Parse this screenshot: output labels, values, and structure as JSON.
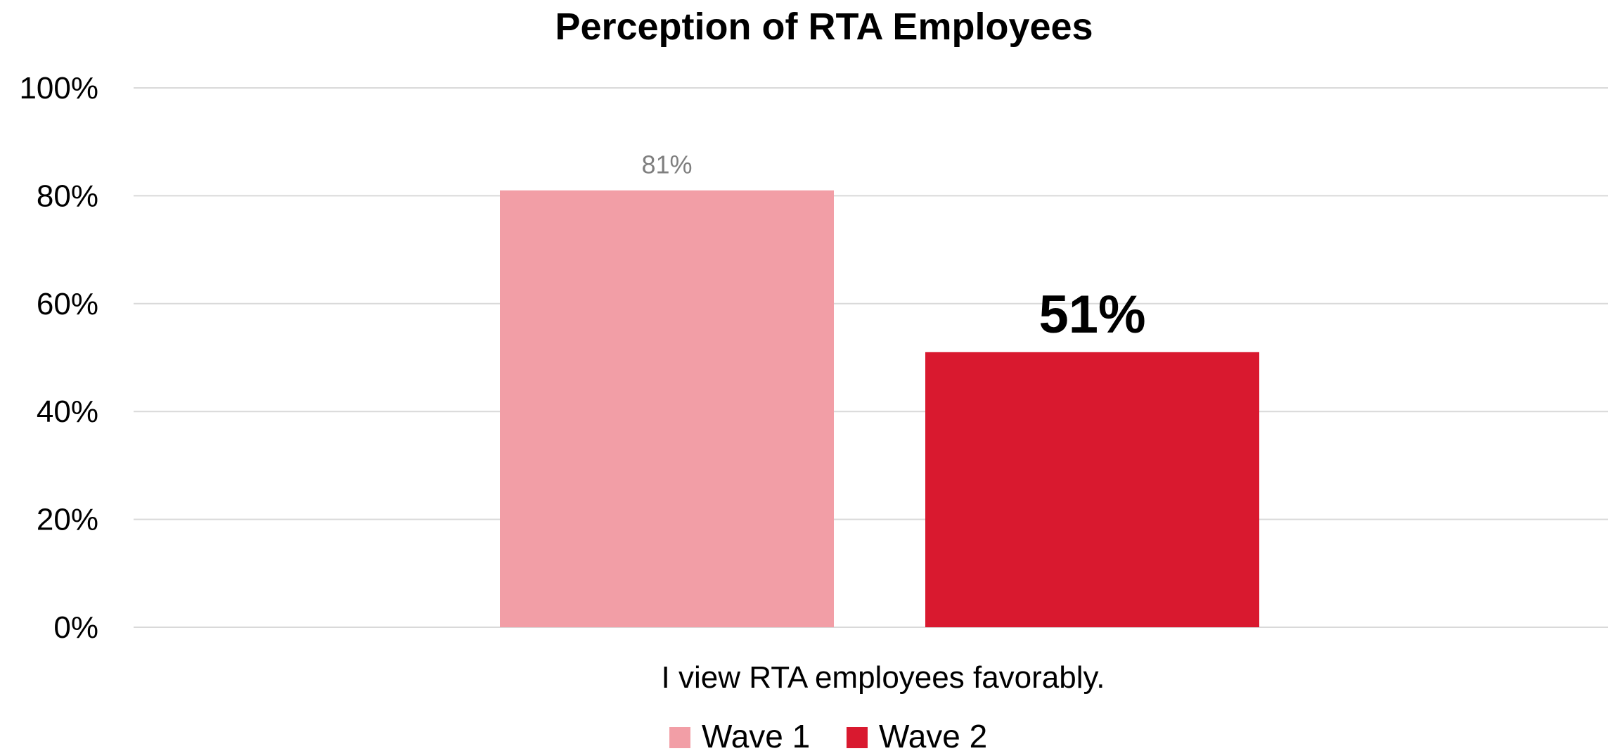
{
  "chart_data": {
    "type": "bar",
    "title": "Perception of RTA Employees",
    "categories": [
      "I view RTA employees favorably."
    ],
    "series": [
      {
        "name": "Wave 1",
        "values": [
          81
        ],
        "label": "81%",
        "color": "#f29ea6",
        "label_color": "#7f7f7f",
        "label_bold": false
      },
      {
        "name": "Wave 2",
        "values": [
          51
        ],
        "label": "51%",
        "color": "#d9192f",
        "label_color": "#000000",
        "label_bold": true
      }
    ],
    "y_ticks": [
      "0%",
      "20%",
      "40%",
      "60%",
      "80%",
      "100%"
    ],
    "y_tick_values": [
      0,
      20,
      40,
      60,
      80,
      100
    ],
    "ylim": [
      0,
      100
    ],
    "xlabel": "",
    "ylabel": "",
    "grid": true,
    "legend_position": "bottom"
  }
}
